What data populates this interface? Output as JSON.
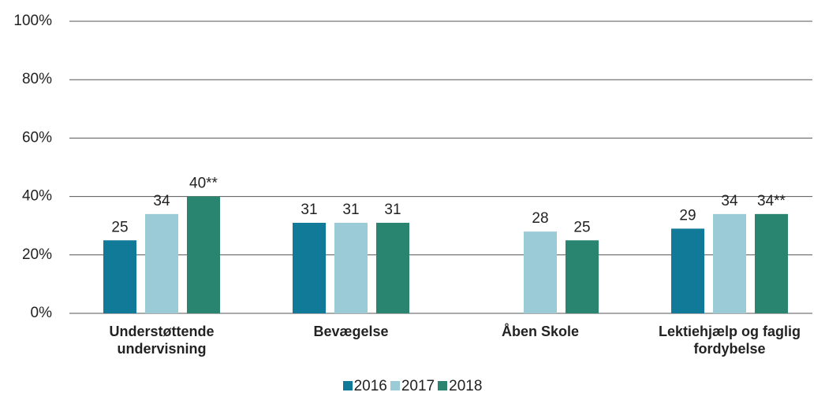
{
  "chart_data": {
    "type": "bar",
    "categories": [
      "Understøttende undervisning",
      "Bevægelse",
      "Åben Skole",
      "Lektiehjælp og faglig fordybelse"
    ],
    "series": [
      {
        "name": "2016",
        "color": "#117a98",
        "values": [
          25,
          31,
          null,
          29
        ]
      },
      {
        "name": "2017",
        "color": "#9ccbd8",
        "values": [
          34,
          31,
          28,
          34
        ]
      },
      {
        "name": "2018",
        "color": "#2a8570",
        "values": [
          40,
          31,
          25,
          34
        ],
        "value_labels": [
          "40**",
          "31",
          "25",
          "34**"
        ]
      }
    ],
    "ylim": [
      0,
      100
    ],
    "yticks": [
      {
        "value": 0,
        "label": "0%"
      },
      {
        "value": 20,
        "label": "20%"
      },
      {
        "value": 40,
        "label": "40%"
      },
      {
        "value": 60,
        "label": "60%"
      },
      {
        "value": 80,
        "label": "80%"
      },
      {
        "value": 100,
        "label": "100%"
      }
    ],
    "grid": true,
    "legend": "bottom"
  }
}
